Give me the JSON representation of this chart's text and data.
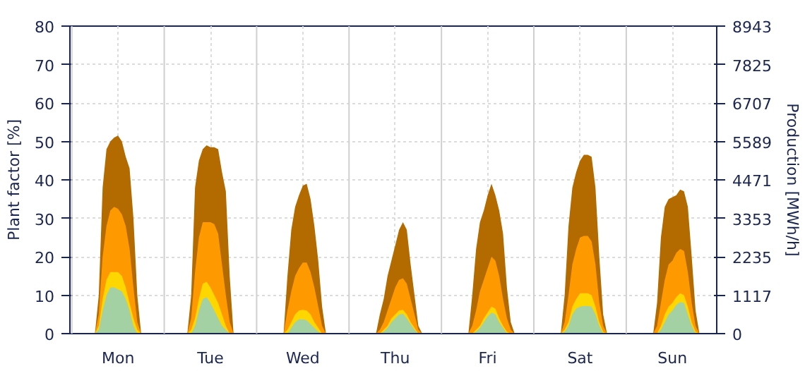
{
  "chart_data": {
    "type": "area",
    "ylabel": "Plant factor [%]",
    "y2label": "Production [MWh/h]",
    "categories": [
      null,
      null,
      null,
      null,
      null,
      null,
      null,
      null,
      null,
      null,
      null,
      null,
      "Mon",
      null,
      null,
      null,
      null,
      null,
      null,
      null,
      null,
      null,
      null,
      null,
      null,
      null,
      null,
      null,
      null,
      null,
      null,
      null,
      null,
      null,
      null,
      null,
      "Tue",
      null,
      null,
      null,
      null,
      null,
      null,
      null,
      null,
      null,
      null,
      null,
      null,
      null,
      null,
      null,
      null,
      null,
      null,
      null,
      null,
      null,
      null,
      null,
      "Wed",
      null,
      null,
      null,
      null,
      null,
      null,
      null,
      null,
      null,
      null,
      null,
      null,
      null,
      null,
      null,
      null,
      null,
      null,
      null,
      null,
      null,
      null,
      null,
      "Thu",
      null,
      null,
      null,
      null,
      null,
      null,
      null,
      null,
      null,
      null,
      null,
      null,
      null,
      null,
      null,
      null,
      null,
      null,
      null,
      null,
      null,
      null,
      null,
      "Fri",
      null,
      null,
      null,
      null,
      null,
      null,
      null,
      null,
      null,
      null,
      null,
      null,
      null,
      null,
      null,
      null,
      null,
      null,
      null,
      null,
      null,
      null,
      null,
      "Sat",
      null,
      null,
      null,
      null,
      null,
      null,
      null,
      null,
      null,
      null,
      null,
      null,
      null,
      null,
      null,
      null,
      null,
      null,
      null,
      null,
      null,
      null,
      null,
      "Sun",
      null,
      null,
      null,
      null,
      null,
      null,
      null,
      null,
      null,
      null,
      null
    ],
    "series": [
      {
        "color": "#b36b00",
        "values": [
          0,
          0,
          0,
          0,
          0,
          0,
          0,
          10,
          38,
          48,
          50,
          51,
          51.5,
          50,
          46,
          43,
          30,
          10,
          0,
          0,
          0,
          0,
          0,
          0,
          0,
          0,
          0,
          0,
          0,
          0,
          0,
          10,
          38,
          45,
          48,
          49,
          48.5,
          48.5,
          48,
          42,
          37,
          15,
          0,
          0,
          0,
          0,
          0,
          0,
          0,
          0,
          0,
          0,
          0,
          0,
          0,
          0,
          15,
          27,
          33,
          36,
          38.5,
          39,
          35,
          28,
          19,
          7,
          0,
          0,
          0,
          0,
          0,
          0,
          0,
          0,
          0,
          0,
          0,
          0,
          0,
          0,
          5,
          9,
          15,
          19,
          23,
          27,
          29,
          27,
          18,
          10,
          2,
          0,
          0,
          0,
          0,
          0,
          0,
          0,
          0,
          0,
          0,
          0,
          0,
          0,
          10,
          22,
          29,
          32,
          36,
          39,
          36,
          32,
          26,
          12,
          3,
          0,
          0,
          0,
          0,
          0,
          0,
          0,
          0,
          0,
          0,
          0,
          0,
          0,
          10,
          28,
          38,
          42,
          45,
          46.5,
          46.5,
          46,
          38,
          20,
          5,
          0,
          0,
          0,
          0,
          0,
          0,
          0,
          0,
          0,
          0,
          0,
          0,
          0,
          8,
          25,
          33,
          35,
          35.5,
          36,
          37.5,
          37,
          33,
          20,
          6,
          0,
          0,
          0,
          0,
          0
        ]
      },
      {
        "color": "#ff9900",
        "values": [
          0,
          0,
          0,
          0,
          0,
          0,
          0,
          5,
          20,
          28,
          32,
          33,
          32.5,
          31,
          28,
          22,
          12,
          3,
          0,
          0,
          0,
          0,
          0,
          0,
          0,
          0,
          0,
          0,
          0,
          0,
          0,
          4,
          16,
          25,
          29,
          29,
          29,
          28.5,
          26,
          18,
          10,
          3,
          0,
          0,
          0,
          0,
          0,
          0,
          0,
          0,
          0,
          0,
          0,
          0,
          0,
          0,
          6,
          11,
          15,
          17,
          18.5,
          18.5,
          16,
          12,
          7,
          2,
          0,
          0,
          0,
          0,
          0,
          0,
          0,
          0,
          0,
          0,
          0,
          0,
          0,
          0,
          1,
          3,
          6,
          9,
          12,
          14,
          14.4,
          13,
          9,
          5,
          1,
          0,
          0,
          0,
          0,
          0,
          0,
          0,
          0,
          0,
          0,
          0,
          0,
          0,
          2,
          6,
          11,
          14,
          17,
          20,
          19,
          15,
          9,
          4,
          1,
          0,
          0,
          0,
          0,
          0,
          0,
          0,
          0,
          0,
          0,
          0,
          0,
          0,
          3,
          10,
          18,
          22,
          25,
          25.4,
          25.4,
          24,
          18,
          8,
          2,
          0,
          0,
          0,
          0,
          0,
          0,
          0,
          0,
          0,
          0,
          0,
          0,
          0,
          2,
          8,
          14,
          18,
          19,
          21,
          22,
          21.5,
          16,
          8,
          2,
          0,
          0,
          0,
          0,
          0
        ]
      },
      {
        "color": "#ffd700",
        "values": [
          0,
          0,
          0,
          0,
          0,
          0,
          0,
          2,
          9,
          14,
          16,
          16,
          16,
          15,
          12,
          8,
          4,
          1,
          0,
          0,
          0,
          0,
          0,
          0,
          0,
          0,
          0,
          0,
          0,
          0,
          0,
          1,
          4,
          9,
          13,
          13.5,
          12,
          10,
          8,
          5,
          2,
          0,
          0,
          0,
          0,
          0,
          0,
          0,
          0,
          0,
          0,
          0,
          0,
          0,
          0,
          0,
          1,
          3,
          5,
          6,
          6.2,
          6,
          5,
          3,
          1.5,
          0,
          0,
          0,
          0,
          0,
          0,
          0,
          0,
          0,
          0,
          0,
          0,
          0,
          0,
          0,
          0,
          1,
          2,
          4,
          5,
          6,
          6.2,
          5,
          3,
          1.5,
          0,
          0,
          0,
          0,
          0,
          0,
          0,
          0,
          0,
          0,
          0,
          0,
          0,
          0,
          0,
          1,
          2,
          4,
          5.5,
          7,
          6.5,
          4,
          2,
          0.5,
          0,
          0,
          0,
          0,
          0,
          0,
          0,
          0,
          0,
          0,
          0,
          0,
          0,
          0,
          1,
          3,
          7,
          9,
          10.5,
          10.5,
          10.5,
          10,
          7,
          3,
          0.5,
          0,
          0,
          0,
          0,
          0,
          0,
          0,
          0,
          0,
          0,
          0,
          0,
          0,
          0,
          2,
          5,
          7,
          8,
          9.5,
          10.5,
          10,
          7,
          3,
          0.5,
          0,
          0,
          0,
          0,
          0
        ]
      },
      {
        "color": "#a3d1a3",
        "values": [
          0,
          0,
          0,
          0,
          0,
          0,
          0,
          1,
          6,
          10,
          12,
          12,
          11.5,
          11,
          9,
          6,
          2,
          0,
          0,
          0,
          0,
          0,
          0,
          0,
          0,
          0,
          0,
          0,
          0,
          0,
          0,
          0,
          2,
          6,
          9,
          9.5,
          8,
          6,
          4,
          2,
          1,
          0,
          0,
          0,
          0,
          0,
          0,
          0,
          0,
          0,
          0,
          0,
          0,
          0,
          0,
          0,
          0,
          1.5,
          3,
          3.7,
          3.7,
          3.5,
          2.5,
          1.5,
          0.5,
          0,
          0,
          0,
          0,
          0,
          0,
          0,
          0,
          0,
          0,
          0,
          0,
          0,
          0,
          0,
          0,
          0.5,
          1.5,
          3,
          4,
          5,
          5.2,
          4,
          2.5,
          1,
          0,
          0,
          0,
          0,
          0,
          0,
          0,
          0,
          0,
          0,
          0,
          0,
          0,
          0,
          0,
          0.5,
          1.5,
          3,
          4.5,
          5.5,
          5,
          3,
          1.5,
          0,
          0,
          0,
          0,
          0,
          0,
          0,
          0,
          0,
          0,
          0,
          0,
          0,
          0,
          0,
          0.5,
          2,
          5,
          6.5,
          7,
          7.2,
          7.2,
          7,
          5,
          2,
          0,
          0,
          0,
          0,
          0,
          0,
          0,
          0,
          0,
          0,
          0,
          0,
          0,
          0,
          0,
          1,
          3,
          5,
          6,
          7.5,
          8.2,
          8,
          5,
          2,
          0,
          0,
          0,
          0,
          0,
          0
        ]
      }
    ],
    "ylim": [
      0,
      80
    ],
    "yticks": [
      0,
      10,
      20,
      30,
      40,
      50,
      60,
      70,
      80
    ],
    "y2lim": [
      0,
      8943
    ],
    "y2ticks": [
      0,
      1117,
      2235,
      3353,
      4471,
      5589,
      6707,
      7825,
      8943
    ],
    "grid": true
  }
}
